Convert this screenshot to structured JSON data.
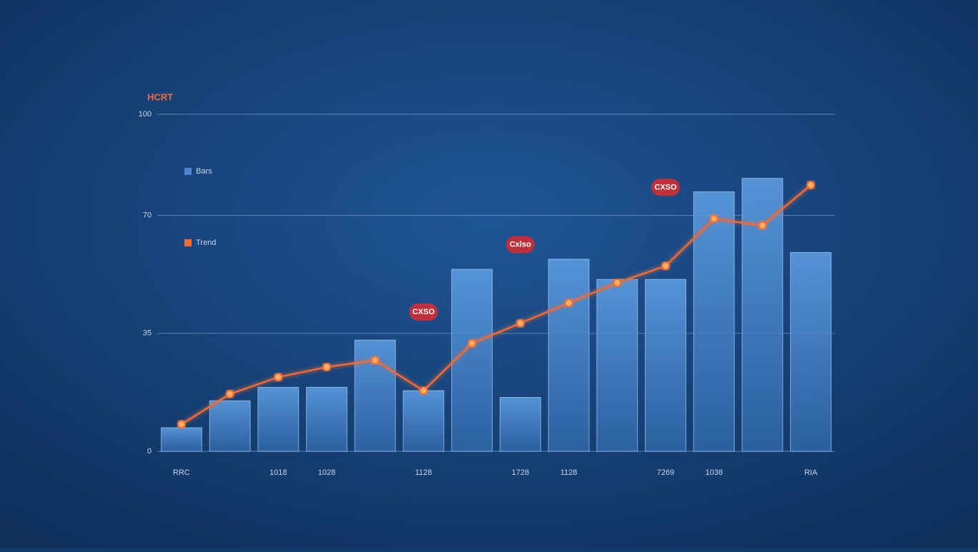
{
  "chart_data": {
    "type": "bar",
    "title": "HCRT",
    "categories": [
      "RRC",
      null,
      "1018",
      "1028",
      null,
      "1128",
      null,
      "1728",
      "1128",
      null,
      "7269",
      "1038",
      null,
      "RIA"
    ],
    "series": [
      {
        "name": "Bars",
        "kind": "bar",
        "color": "#4a86cf",
        "values": [
          7,
          15,
          19,
          19,
          33,
          18,
          54,
          16,
          57,
          51,
          51,
          77,
          81,
          59
        ]
      },
      {
        "name": "Trend",
        "kind": "line",
        "color": "#f26a35",
        "values": [
          8,
          17,
          22,
          25,
          27,
          18,
          32,
          38,
          44,
          50,
          55,
          69,
          67,
          79
        ]
      }
    ],
    "annotations": [
      {
        "text": "CXSO",
        "index": 5
      },
      {
        "text": "Cxlso",
        "index": 7
      },
      {
        "text": "CXSO",
        "index": 10
      }
    ],
    "ylim": [
      0,
      100
    ],
    "yticks": [
      0,
      35,
      70,
      100
    ],
    "grid": true
  }
}
